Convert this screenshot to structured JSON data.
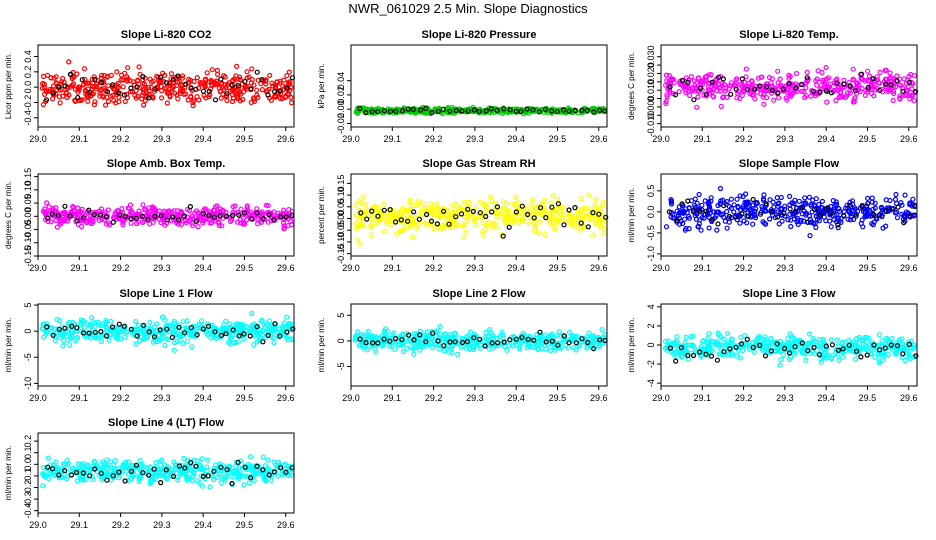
{
  "title": "NWR_061029  2.5 Min. Slope Diagnostics",
  "chart_data": [
    {
      "type": "scatter",
      "title": "Slope Li-820 CO2",
      "ylabel": "Licor ppm per min.",
      "color": "#ff0000",
      "xlim": [
        29.0,
        29.62
      ],
      "ylim": [
        -0.52,
        0.55
      ],
      "xticks": [
        "29.0",
        "29.1",
        "29.2",
        "29.3",
        "29.4",
        "29.5",
        "29.6"
      ],
      "ytick_values": [
        -0.4,
        -0.2,
        0.0,
        0.2,
        0.4
      ],
      "ytick_labels": [
        "-0.4",
        "-0.2",
        "0.0",
        "0.2",
        "0.4"
      ],
      "center": 0.0,
      "spread": 0.18,
      "n": 420
    },
    {
      "type": "scatter",
      "title": "Slope Li-820 Pressure",
      "ylabel": "kPa per min.",
      "color": "#00cc00",
      "xlim": [
        29.0,
        29.62
      ],
      "ylim": [
        -0.025,
        0.09
      ],
      "xticks": [
        "29.0",
        "29.1",
        "29.2",
        "29.3",
        "29.4",
        "29.5",
        "29.6"
      ],
      "ytick_values": [
        -0.02,
        0.0,
        0.02,
        0.04
      ],
      "ytick_labels": [
        "-0.02",
        "0.00",
        "0.02",
        "0.04"
      ],
      "center": -0.002,
      "spread": 0.003,
      "n": 420
    },
    {
      "type": "scatter",
      "title": "Slope Li-820 Temp.",
      "ylabel": "degrees C per min.",
      "color": "#ff00ff",
      "xlim": [
        29.0,
        29.62
      ],
      "ylim": [
        -0.012,
        0.037
      ],
      "xticks": [
        "29.0",
        "29.1",
        "29.2",
        "29.3",
        "29.4",
        "29.5",
        "29.6"
      ],
      "ytick_values": [
        -0.01,
        -0.005,
        0.0,
        0.005,
        0.01,
        0.015,
        0.02,
        0.025,
        0.03
      ],
      "ytick_labels": [
        "-0.010",
        "",
        "0.000",
        "",
        "0.010",
        "",
        "0.020",
        "",
        "0.030"
      ],
      "center": 0.012,
      "spread": 0.007,
      "n": 420
    },
    {
      "type": "scatter",
      "title": "Slope Amb. Box Temp.",
      "ylabel": "degrees C per min.",
      "color": "#ff00ff",
      "xlim": [
        29.0,
        29.62
      ],
      "ylim": [
        -0.15,
        0.16
      ],
      "xticks": [
        "29.0",
        "29.1",
        "29.2",
        "29.3",
        "29.4",
        "29.5",
        "29.6"
      ],
      "ytick_values": [
        -0.15,
        -0.1,
        -0.05,
        0.0,
        0.05,
        0.1,
        0.15
      ],
      "ytick_labels": [
        "-0.15",
        "-0.10",
        "-0.05",
        "0.00",
        "0.05",
        "0.10",
        "0.15"
      ],
      "center": 0.0,
      "spread": 0.03,
      "n": 420
    },
    {
      "type": "scatter",
      "title": "Slope Gas Stream RH",
      "ylabel": "percent per min.",
      "color": "#ffff00",
      "xlim": [
        29.0,
        29.62
      ],
      "ylim": [
        -0.16,
        0.19
      ],
      "xticks": [
        "29.0",
        "29.1",
        "29.2",
        "29.3",
        "29.4",
        "29.5",
        "29.6"
      ],
      "ytick_values": [
        -0.15,
        -0.1,
        -0.05,
        0.0,
        0.05,
        0.1,
        0.15
      ],
      "ytick_labels": [
        "-0.15",
        "-0.10",
        "-0.05",
        "0.00",
        "0.05",
        "0.10",
        "0.15"
      ],
      "center": 0.01,
      "spread": 0.06,
      "n": 420
    },
    {
      "type": "scatter",
      "title": "Slope Sample Flow",
      "ylabel": "ml/min per min.",
      "color": "#0000ff",
      "xlim": [
        29.0,
        29.62
      ],
      "ylim": [
        -1.05,
        0.9
      ],
      "xticks": [
        "29.0",
        "29.1",
        "29.2",
        "29.3",
        "29.4",
        "29.5",
        "29.6"
      ],
      "ytick_values": [
        -1.0,
        -0.5,
        0.0,
        0.5
      ],
      "ytick_labels": [
        "-1.0",
        "-0.5",
        "0.0",
        "0.5"
      ],
      "center": 0.0,
      "spread": 0.3,
      "n": 420
    },
    {
      "type": "scatter",
      "title": "Slope Line 1 Flow",
      "ylabel": "ml/min per min.",
      "color": "#00ffff",
      "xlim": [
        29.0,
        29.62
      ],
      "ylim": [
        -10.5,
        5.2
      ],
      "xticks": [
        "29.0",
        "29.1",
        "29.2",
        "29.3",
        "29.4",
        "29.5",
        "29.6"
      ],
      "ytick_values": [
        -10,
        -5,
        0,
        5
      ],
      "ytick_labels": [
        "-10",
        "-5",
        "0",
        "5"
      ],
      "center": 0.0,
      "spread": 1.8,
      "n": 420
    },
    {
      "type": "scatter",
      "title": "Slope Line 2 Flow",
      "ylabel": "ml/min per min.",
      "color": "#00ffff",
      "xlim": [
        29.0,
        29.62
      ],
      "ylim": [
        -8.8,
        7.2
      ],
      "xticks": [
        "29.0",
        "29.1",
        "29.2",
        "29.3",
        "29.4",
        "29.5",
        "29.6"
      ],
      "ytick_values": [
        -5,
        0,
        5
      ],
      "ytick_labels": [
        "-5",
        "0",
        "5"
      ],
      "center": 0.0,
      "spread": 1.6,
      "n": 420
    },
    {
      "type": "scatter",
      "title": "Slope Line 3 Flow",
      "ylabel": "ml/min per min.",
      "color": "#00ffff",
      "xlim": [
        29.0,
        29.62
      ],
      "ylim": [
        -4.3,
        4.3
      ],
      "xticks": [
        "29.0",
        "29.1",
        "29.2",
        "29.3",
        "29.4",
        "29.5",
        "29.6"
      ],
      "ytick_values": [
        -4,
        -2,
        0,
        2,
        4
      ],
      "ytick_labels": [
        "-4",
        "-2",
        "0",
        "2",
        "4"
      ],
      "center": -0.3,
      "spread": 1.0,
      "n": 420
    },
    {
      "type": "scatter",
      "title": "Slope Line 4 (LT) Flow",
      "ylabel": "ml/min per min.",
      "color": "#00ffff",
      "xlim": [
        29.0,
        29.62
      ],
      "ylim": [
        -0.42,
        0.27
      ],
      "xticks": [
        "29.0",
        "29.1",
        "29.2",
        "29.3",
        "29.4",
        "29.5",
        "29.6"
      ],
      "ytick_values": [
        -0.4,
        -0.3,
        -0.2,
        -0.1,
        0.0,
        0.1,
        0.2
      ],
      "ytick_labels": [
        "-0.4",
        "-0.3",
        "-0.2",
        "-0.1",
        "0.0",
        "0.1",
        "0.2"
      ],
      "center": -0.06,
      "spread": 0.08,
      "n": 420
    }
  ]
}
